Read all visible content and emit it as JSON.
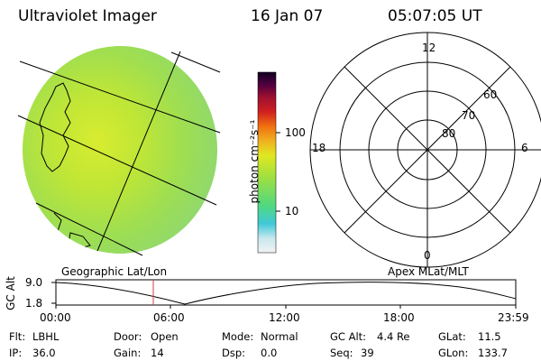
{
  "header": {
    "instrument": "Ultraviolet Imager",
    "date": "16 Jan 07",
    "time": "05:07:05 UT"
  },
  "colorbar": {
    "unit_label": "photon cm⁻²s⁻¹",
    "ticks": [
      "100",
      "10"
    ]
  },
  "polar_plot": {
    "mlt_labels": [
      "12",
      "18",
      "6",
      "0"
    ],
    "lat_labels": [
      "60",
      "70",
      "80"
    ]
  },
  "panel_labels": {
    "left": "Geographic Lat/Lon",
    "right": "Apex MLat/MLT"
  },
  "alt_plot": {
    "ylabel": "GC Alt",
    "ytick_top": "9.0",
    "ytick_bottom": "1.8",
    "xticks": [
      "00:00",
      "06:00",
      "12:00",
      "18:00",
      "23:59"
    ],
    "marker_time": "05:07",
    "colors": {
      "curve": "#000000",
      "marker": "#d04040"
    }
  },
  "info": {
    "flt_label": "Flt:",
    "flt_value": "LBHL",
    "door_label": "Door:",
    "door_value": "Open",
    "mode_label": "Mode:",
    "mode_value": "Normal",
    "gcalt_label": "GC Alt:",
    "gcalt_value": "4.4 Re",
    "glat_label": "GLat:",
    "glat_value": "11.5",
    "ip_label": "IP:",
    "ip_value": "36.0",
    "gain_label": "Gain:",
    "gain_value": "14",
    "dsp_label": "Dsp:",
    "dsp_value": "0.0",
    "seq_label": "Seq:",
    "seq_value": "39",
    "glon_label": "GLon:",
    "glon_value": "133.7"
  }
}
